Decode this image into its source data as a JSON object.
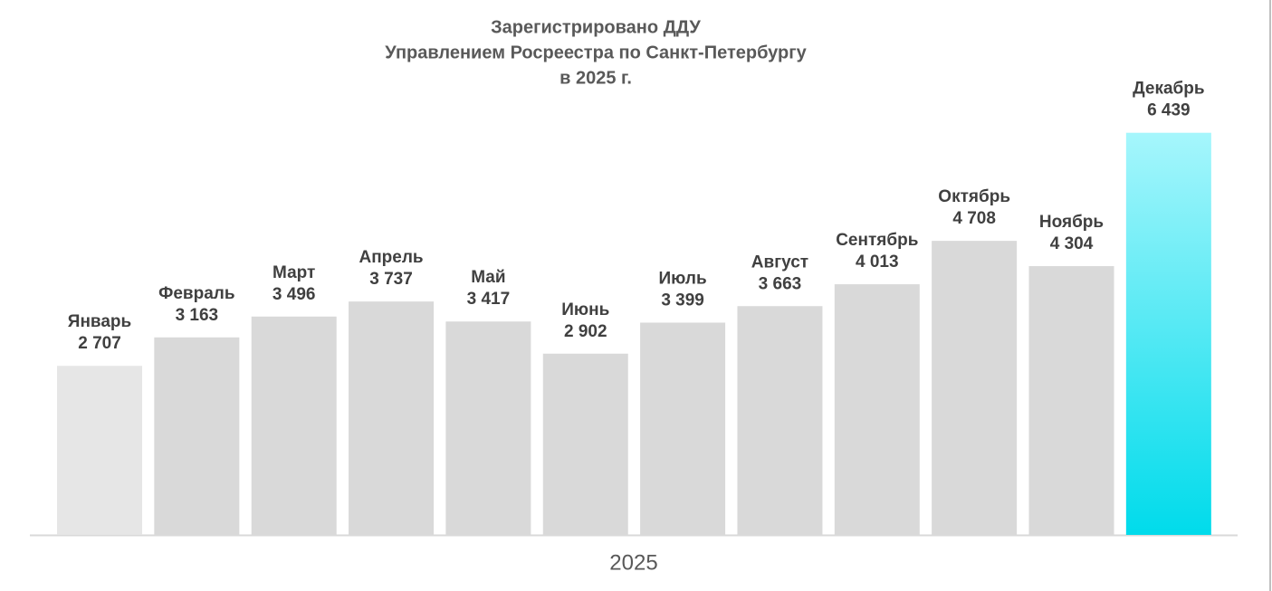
{
  "chart_data": {
    "type": "bar",
    "title_lines": [
      "Зарегистрировано ДДУ",
      "Управлением Росреестра по Санкт-Петербургу",
      "в 2025 г."
    ],
    "xlabel": "2025",
    "categories": [
      "Январь",
      "Февраль",
      "Март",
      "Апрель",
      "Май",
      "Июнь",
      "Июль",
      "Август",
      "Сентябрь",
      "Октябрь",
      "Ноябрь",
      "Декабрь"
    ],
    "values": [
      2707,
      3163,
      3496,
      3737,
      3417,
      2902,
      3399,
      3663,
      4013,
      4708,
      4304,
      6439
    ],
    "value_labels": [
      "2 707",
      "3 163",
      "3 496",
      "3 737",
      "3 417",
      "2 902",
      "3 399",
      "3 663",
      "4 013",
      "4 708",
      "4 304",
      "6 439"
    ],
    "colors": [
      "#e6e6e6",
      "#d9d9d9",
      "#d9d9d9",
      "#d9d9d9",
      "#d9d9d9",
      "#d9d9d9",
      "#d9d9d9",
      "#d9d9d9",
      "#d9d9d9",
      "#d9d9d9",
      "#d9d9d9",
      "#00dbeb"
    ],
    "ylim": [
      0,
      7000
    ]
  }
}
